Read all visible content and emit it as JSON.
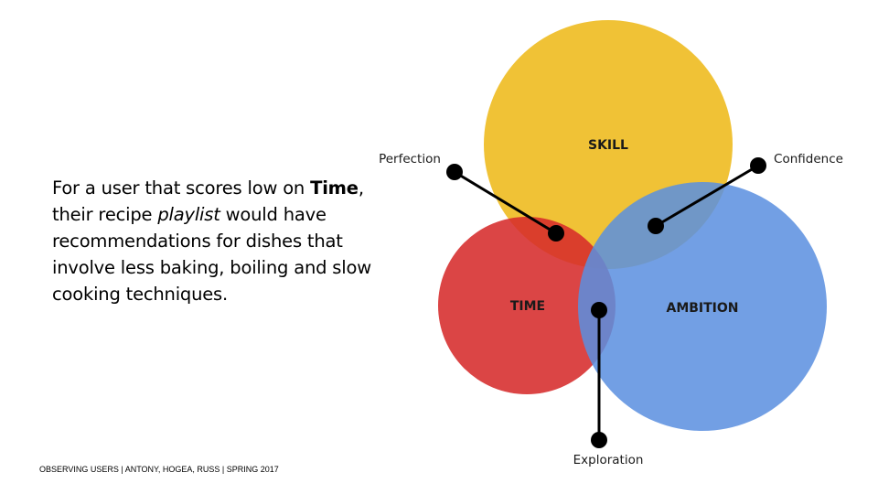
{
  "slide": {
    "body": {
      "part1": "For a user that scores low on ",
      "bold": "Time",
      "part2": ", their recipe ",
      "italic": "playlist",
      "part3": " would have recommendations for dishes that involve less baking, boiling and slow cooking techniques."
    },
    "footer": "OBSERVING USERS | ANTONY, HOGEA, RUSS | SPRING 2017"
  },
  "diagram": {
    "circles": [
      {
        "label": "SKILL",
        "color": "#F0C030"
      },
      {
        "label": "TIME",
        "color": "#D62B2B"
      },
      {
        "label": "AMBITION",
        "color": "#5B8FE0"
      }
    ],
    "callouts": [
      {
        "label": "Perfection"
      },
      {
        "label": "Confidence"
      },
      {
        "label": "Exploration"
      }
    ]
  }
}
